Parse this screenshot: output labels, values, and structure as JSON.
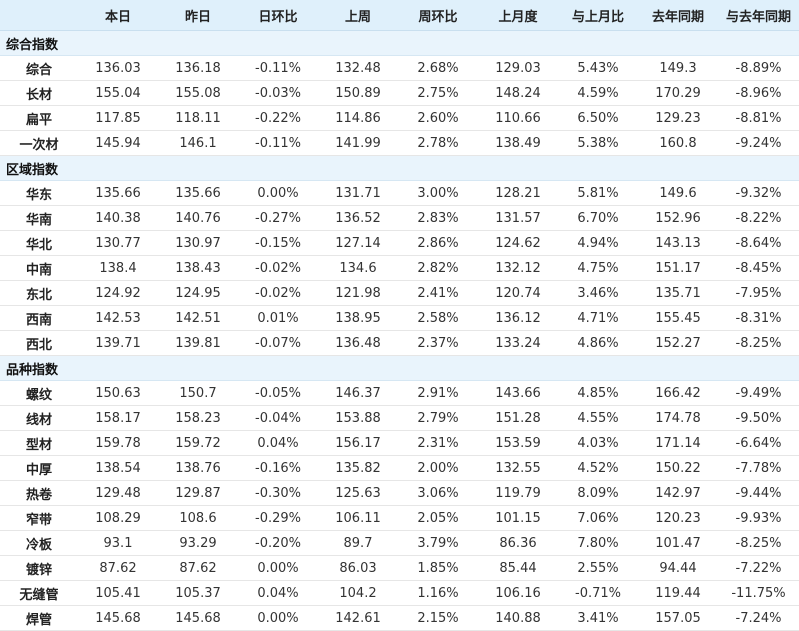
{
  "header": [
    "",
    "本日",
    "昨日",
    "日环比",
    "上周",
    "周环比",
    "上月度",
    "与上月比",
    "去年同期",
    "与去年同期"
  ],
  "groups": [
    {
      "title": "综合指数",
      "rows": [
        [
          "综合",
          "136.03",
          "136.18",
          "-0.11%",
          "132.48",
          "2.68%",
          "129.03",
          "5.43%",
          "149.3",
          "-8.89%"
        ],
        [
          "长材",
          "155.04",
          "155.08",
          "-0.03%",
          "150.89",
          "2.75%",
          "148.24",
          "4.59%",
          "170.29",
          "-8.96%"
        ],
        [
          "扁平",
          "117.85",
          "118.11",
          "-0.22%",
          "114.86",
          "2.60%",
          "110.66",
          "6.50%",
          "129.23",
          "-8.81%"
        ],
        [
          "一次材",
          "145.94",
          "146.1",
          "-0.11%",
          "141.99",
          "2.78%",
          "138.49",
          "5.38%",
          "160.8",
          "-9.24%"
        ]
      ]
    },
    {
      "title": "区域指数",
      "rows": [
        [
          "华东",
          "135.66",
          "135.66",
          "0.00%",
          "131.71",
          "3.00%",
          "128.21",
          "5.81%",
          "149.6",
          "-9.32%"
        ],
        [
          "华南",
          "140.38",
          "140.76",
          "-0.27%",
          "136.52",
          "2.83%",
          "131.57",
          "6.70%",
          "152.96",
          "-8.22%"
        ],
        [
          "华北",
          "130.77",
          "130.97",
          "-0.15%",
          "127.14",
          "2.86%",
          "124.62",
          "4.94%",
          "143.13",
          "-8.64%"
        ],
        [
          "中南",
          "138.4",
          "138.43",
          "-0.02%",
          "134.6",
          "2.82%",
          "132.12",
          "4.75%",
          "151.17",
          "-8.45%"
        ],
        [
          "东北",
          "124.92",
          "124.95",
          "-0.02%",
          "121.98",
          "2.41%",
          "120.74",
          "3.46%",
          "135.71",
          "-7.95%"
        ],
        [
          "西南",
          "142.53",
          "142.51",
          "0.01%",
          "138.95",
          "2.58%",
          "136.12",
          "4.71%",
          "155.45",
          "-8.31%"
        ],
        [
          "西北",
          "139.71",
          "139.81",
          "-0.07%",
          "136.48",
          "2.37%",
          "133.24",
          "4.86%",
          "152.27",
          "-8.25%"
        ]
      ]
    },
    {
      "title": "品种指数",
      "rows": [
        [
          "螺纹",
          "150.63",
          "150.7",
          "-0.05%",
          "146.37",
          "2.91%",
          "143.66",
          "4.85%",
          "166.42",
          "-9.49%"
        ],
        [
          "线材",
          "158.17",
          "158.23",
          "-0.04%",
          "153.88",
          "2.79%",
          "151.28",
          "4.55%",
          "174.78",
          "-9.50%"
        ],
        [
          "型材",
          "159.78",
          "159.72",
          "0.04%",
          "156.17",
          "2.31%",
          "153.59",
          "4.03%",
          "171.14",
          "-6.64%"
        ],
        [
          "中厚",
          "138.54",
          "138.76",
          "-0.16%",
          "135.82",
          "2.00%",
          "132.55",
          "4.52%",
          "150.22",
          "-7.78%"
        ],
        [
          "热卷",
          "129.48",
          "129.87",
          "-0.30%",
          "125.63",
          "3.06%",
          "119.79",
          "8.09%",
          "142.97",
          "-9.44%"
        ],
        [
          "窄带",
          "108.29",
          "108.6",
          "-0.29%",
          "106.11",
          "2.05%",
          "101.15",
          "7.06%",
          "120.23",
          "-9.93%"
        ],
        [
          "冷板",
          "93.1",
          "93.29",
          "-0.20%",
          "89.7",
          "3.79%",
          "86.36",
          "7.80%",
          "101.47",
          "-8.25%"
        ],
        [
          "镀锌",
          "87.62",
          "87.62",
          "0.00%",
          "86.03",
          "1.85%",
          "85.44",
          "2.55%",
          "94.44",
          "-7.22%"
        ],
        [
          "无缝管",
          "105.41",
          "105.37",
          "0.04%",
          "104.2",
          "1.16%",
          "106.16",
          "-0.71%",
          "119.44",
          "-11.75%"
        ],
        [
          "焊管",
          "145.68",
          "145.68",
          "0.00%",
          "142.61",
          "2.15%",
          "140.88",
          "3.41%",
          "157.05",
          "-7.24%"
        ]
      ]
    }
  ],
  "colors": {
    "header_bg": "#dff0fb",
    "group_bg": "#e9f4fc",
    "positive": "#e02020",
    "negative": "#1e8c1e",
    "neutral": "#333333"
  }
}
